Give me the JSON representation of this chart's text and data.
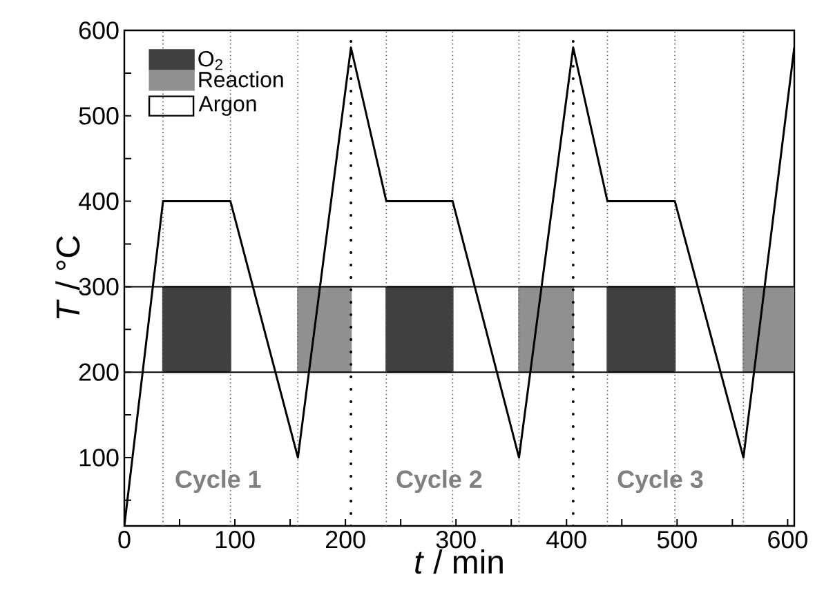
{
  "chart_data": {
    "type": "line",
    "xlabel": "*t* / min",
    "ylabel": "*T* / °C",
    "x": [
      0,
      35,
      96,
      157,
      205,
      237,
      297,
      357,
      406,
      437,
      498,
      560,
      606
    ],
    "values": [
      20,
      400,
      400,
      100,
      580,
      400,
      400,
      100,
      580,
      400,
      400,
      100,
      580
    ],
    "color": "#000000",
    "xlim": [
      0,
      606
    ],
    "ylim": [
      20,
      600
    ],
    "xticks": [
      0,
      {
        "value": 50,
        "label": null
      },
      100,
      {
        "value": 150,
        "label": null
      },
      200,
      {
        "value": 250,
        "label": null
      },
      300,
      {
        "value": 350,
        "label": null
      },
      400,
      {
        "value": 450,
        "label": null
      },
      500,
      {
        "value": 550,
        "label": null
      },
      600
    ],
    "yticks": [
      {
        "value": 50,
        "label": null
      },
      100,
      {
        "value": 150,
        "label": null
      },
      200,
      {
        "value": 250,
        "label": null
      },
      300,
      {
        "value": 350,
        "label": null
      },
      400,
      {
        "value": 450,
        "label": null
      },
      500,
      {
        "value": 550,
        "label": null
      },
      600
    ],
    "ref_lines": [
      {
        "axis": "y",
        "value": 200,
        "color": "#000000",
        "line_style": "solid"
      },
      {
        "axis": "y",
        "value": 300,
        "color": "#000000",
        "line_style": "solid"
      },
      {
        "axis": "x",
        "value": 35,
        "color": "#555555",
        "line_style": "dotted"
      },
      {
        "axis": "x",
        "value": 96,
        "color": "#555555",
        "line_style": "dotted"
      },
      {
        "axis": "x",
        "value": 157,
        "color": "#555555",
        "line_style": "dotted"
      },
      {
        "axis": "x",
        "value": 205,
        "color": "#000000",
        "line_style": "dotted"
      },
      {
        "axis": "x",
        "value": 237,
        "color": "#555555",
        "line_style": "dotted"
      },
      {
        "axis": "x",
        "value": 297,
        "color": "#555555",
        "line_style": "dotted"
      },
      {
        "axis": "x",
        "value": 357,
        "color": "#555555",
        "line_style": "dotted"
      },
      {
        "axis": "x",
        "value": 406,
        "color": "#000000",
        "line_style": "dotted"
      },
      {
        "axis": "x",
        "value": 437,
        "color": "#555555",
        "line_style": "dotted"
      },
      {
        "axis": "x",
        "value": 498,
        "color": "#555555",
        "line_style": "dotted"
      },
      {
        "axis": "x",
        "value": 560,
        "color": "#555555",
        "line_style": "dotted"
      }
    ],
    "bands": [
      {
        "axis": "x",
        "from": 35,
        "to": 96,
        "label": "O$_{2}$",
        "color": "#404040"
      },
      {
        "axis": "x",
        "from": 157,
        "to": 205,
        "label": "Reaction",
        "color": "#909090"
      },
      {
        "axis": "x",
        "from": 237,
        "to": 297,
        "color": "#404040"
      },
      {
        "axis": "x",
        "from": 357,
        "to": 406,
        "color": "#909090"
      },
      {
        "axis": "x",
        "from": 437,
        "to": 498,
        "color": "#404040"
      },
      {
        "axis": "x",
        "from": 560,
        "to": 606,
        "color": "#909090"
      }
    ],
    "annotations": [
      "Cycle 1",
      "Cycle 2",
      "Cycle 3",
      "Argon"
    ],
    "legend": "top left"
  }
}
